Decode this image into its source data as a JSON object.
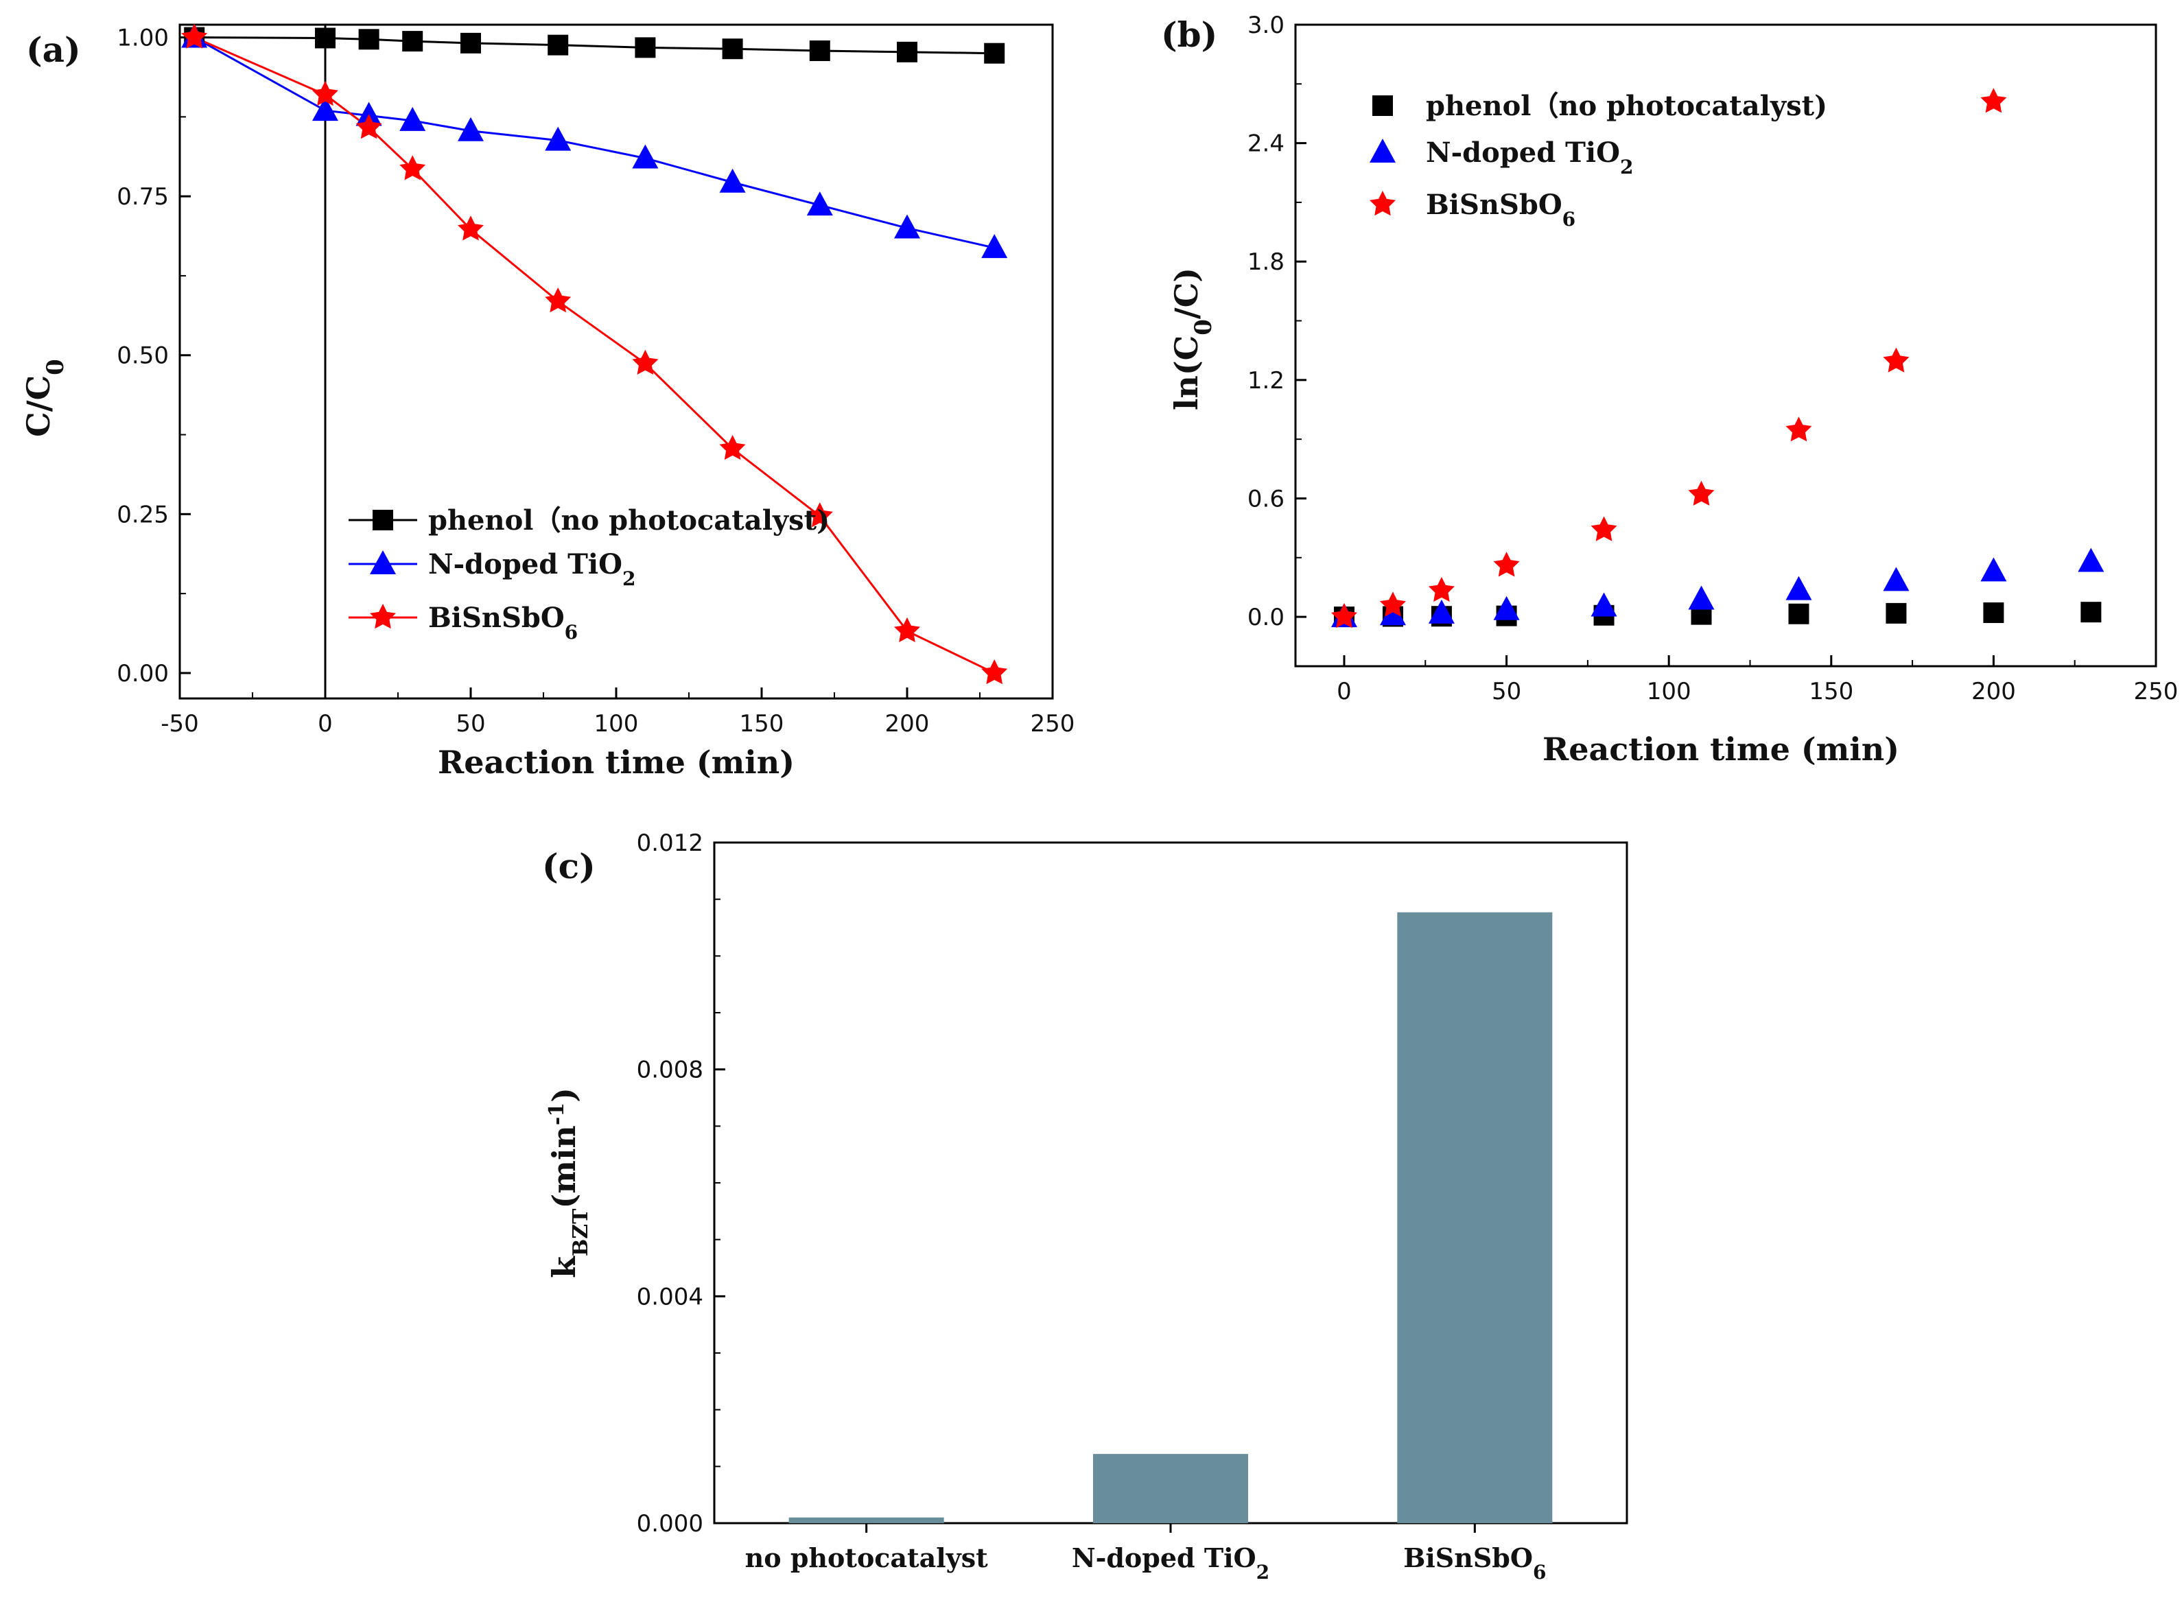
{
  "figure": {
    "panel_labels": [
      "(a)",
      "(b)",
      "(c)"
    ]
  },
  "colors": {
    "phenol": "#000000",
    "tio2": "#0000ff",
    "bisnsbo": "#ff0000",
    "bar": "#678e9a"
  },
  "chart_data": [
    {
      "panel": "(a)",
      "type": "line",
      "xlabel": "Reaction time (min)",
      "ylabel": {
        "base": "C/C",
        "sub": "0"
      },
      "xlim": [
        -50,
        250
      ],
      "ylim": [
        -0.04,
        1.02
      ],
      "xticks": [
        "-50",
        "0",
        "50",
        "100",
        "150",
        "200",
        "250"
      ],
      "xtick_values": [
        -50,
        0,
        50,
        100,
        150,
        200,
        250
      ],
      "yticks": [
        "0.00",
        "0.25",
        "0.50",
        "0.75",
        "1.00"
      ],
      "ytick_values": [
        0,
        0.25,
        0.5,
        0.75,
        1.0
      ],
      "vertical_line_at": 0,
      "legend_position": "bottom-center",
      "series": [
        {
          "name": "phenol（no photocatalyst)",
          "legend": {
            "base": "phenol（no photocatalyst)",
            "sub": ""
          },
          "marker": "square",
          "color_key": "phenol",
          "x": [
            -45,
            0,
            15,
            30,
            50,
            80,
            110,
            140,
            170,
            200,
            230
          ],
          "y": [
            1.0,
            0.999,
            0.997,
            0.994,
            0.991,
            0.988,
            0.984,
            0.982,
            0.979,
            0.977,
            0.975
          ]
        },
        {
          "name": "N-doped TiO2",
          "legend": {
            "base": "N-doped TiO",
            "sub": "2"
          },
          "marker": "triangle",
          "color_key": "tio2",
          "x": [
            -45,
            0,
            15,
            30,
            50,
            80,
            110,
            140,
            170,
            200,
            230
          ],
          "y": [
            1.0,
            0.885,
            0.877,
            0.869,
            0.853,
            0.838,
            0.81,
            0.772,
            0.736,
            0.7,
            0.669
          ]
        },
        {
          "name": "BiSnSbO6",
          "legend": {
            "base": "BiSnSbO",
            "sub": "6"
          },
          "marker": "star",
          "color_key": "bisnsbo",
          "x": [
            -45,
            0,
            15,
            30,
            50,
            80,
            110,
            140,
            170,
            200,
            230
          ],
          "y": [
            1.0,
            0.91,
            0.858,
            0.793,
            0.698,
            0.585,
            0.487,
            0.353,
            0.247,
            0.066,
            0.0
          ]
        }
      ]
    },
    {
      "panel": "(b)",
      "type": "scatter",
      "xlabel": "Reaction time (min)",
      "ylabel": {
        "pre": "ln(C",
        "sub": "0",
        "post": "/C)"
      },
      "xlim": [
        -15,
        250
      ],
      "ylim": [
        -0.25,
        3.0
      ],
      "xticks": [
        "0",
        "50",
        "100",
        "150",
        "200",
        "250"
      ],
      "xtick_values": [
        0,
        50,
        100,
        150,
        200,
        250
      ],
      "yticks": [
        "0.0",
        "0.6",
        "1.2",
        "1.8",
        "2.4",
        "3.0"
      ],
      "ytick_values": [
        0,
        0.6,
        1.2,
        1.8,
        2.4,
        3.0
      ],
      "legend_position": "top-left",
      "series": [
        {
          "name": "phenol（no photocatalyst)",
          "legend": {
            "base": "phenol（no photocatalyst)",
            "sub": ""
          },
          "marker": "square",
          "color_key": "phenol",
          "x": [
            0,
            15,
            30,
            50,
            80,
            110,
            140,
            170,
            200,
            230
          ],
          "y": [
            0.0,
            0.002,
            0.003,
            0.005,
            0.008,
            0.012,
            0.015,
            0.018,
            0.021,
            0.024
          ]
        },
        {
          "name": "N-doped TiO2",
          "legend": {
            "base": "N-doped TiO",
            "sub": "2"
          },
          "marker": "triangle",
          "color_key": "tio2",
          "x": [
            0,
            15,
            30,
            50,
            80,
            110,
            140,
            170,
            200,
            230
          ],
          "y": [
            0.0,
            0.01,
            0.018,
            0.036,
            0.054,
            0.089,
            0.137,
            0.183,
            0.232,
            0.28
          ]
        },
        {
          "name": "BiSnSbO6",
          "legend": {
            "base": "BiSnSbO",
            "sub": "6"
          },
          "marker": "star",
          "color_key": "bisnsbo",
          "x": [
            0,
            15,
            30,
            50,
            80,
            110,
            140,
            170,
            200
          ],
          "y": [
            0.0,
            0.058,
            0.133,
            0.26,
            0.44,
            0.62,
            0.945,
            1.295,
            2.61
          ]
        }
      ]
    },
    {
      "panel": "(c)",
      "type": "bar",
      "categories": [
        "no photocatalyst",
        "N-doped TiO2",
        "BiSnSbO6"
      ],
      "category_labels": [
        {
          "base": "no photocatalyst",
          "sub": ""
        },
        {
          "base": "N-doped TiO",
          "sub": "2"
        },
        {
          "base": "BiSnSbO",
          "sub": "6"
        }
      ],
      "values": [
        0.0001,
        0.00122,
        0.01077
      ],
      "ylabel": {
        "base": "k",
        "sub": "BZT",
        "mid": "(min",
        "sup": "-1",
        "end": ")"
      },
      "ylim": [
        0,
        0.012
      ],
      "yticks": [
        "0.000",
        "0.004",
        "0.008",
        "0.012"
      ],
      "ytick_values": [
        0,
        0.004,
        0.008,
        0.012
      ]
    }
  ]
}
